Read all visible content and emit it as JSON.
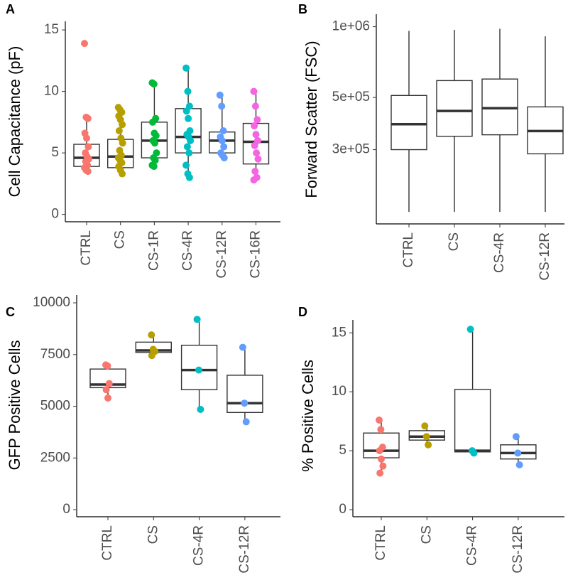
{
  "chart_data": [
    {
      "type": "box",
      "panel_label": "A",
      "ylabel": "Cell Capacitance (pF)",
      "categories": [
        "CTRL",
        "CS",
        "CS-1R",
        "CS-4R",
        "CS-12R",
        "CS-16R"
      ],
      "colors": [
        "#F8766D",
        "#B79F00",
        "#00BA38",
        "#00BFC4",
        "#619CFF",
        "#F564E3"
      ],
      "ylim": [
        -0.6,
        15.7
      ],
      "yticks": [
        0,
        5,
        10,
        15
      ],
      "boxes": [
        {
          "whisker_low": 3.5,
          "q1": 3.9,
          "median": 4.6,
          "q3": 5.7,
          "whisker_high": 7.9,
          "points": [
            13.9,
            7.9,
            7.8,
            6.6,
            6.2,
            5.5,
            5.0,
            4.7,
            4.5,
            4.3,
            4.0,
            3.8,
            3.6,
            3.5
          ]
        },
        {
          "whisker_low": 3.2,
          "q1": 3.8,
          "median": 4.7,
          "q3": 6.1,
          "whisker_high": 8.7,
          "points": [
            8.7,
            8.5,
            8.3,
            8.0,
            7.7,
            7.3,
            6.8,
            6.2,
            5.8,
            5.2,
            4.8,
            4.6,
            4.4,
            4.2,
            3.9,
            3.6,
            3.3
          ]
        },
        {
          "whisker_low": 3.9,
          "q1": 4.6,
          "median": 6.0,
          "q3": 7.5,
          "whisker_high": 10.7,
          "points": [
            10.7,
            10.6,
            7.8,
            7.5,
            6.6,
            6.4,
            6.0,
            5.8,
            5.0,
            4.6,
            4.4,
            4.0,
            3.9
          ]
        },
        {
          "whisker_low": 3.0,
          "q1": 5.0,
          "median": 6.3,
          "q3": 8.6,
          "whisker_high": 11.9,
          "points": [
            11.9,
            10.0,
            8.8,
            8.4,
            7.8,
            6.8,
            6.5,
            6.3,
            6.0,
            5.5,
            5.0,
            4.0,
            3.3,
            3.0
          ]
        },
        {
          "whisker_low": 4.6,
          "q1": 5.0,
          "median": 6.0,
          "q3": 6.7,
          "whisker_high": 9.7,
          "points": [
            9.7,
            8.8,
            6.8,
            6.3,
            6.0,
            5.5,
            5.0,
            4.8,
            4.6
          ]
        },
        {
          "whisker_low": 2.8,
          "q1": 4.1,
          "median": 5.9,
          "q3": 7.4,
          "whisker_high": 10.0,
          "points": [
            10.0,
            8.8,
            7.7,
            7.2,
            6.5,
            6.0,
            5.6,
            5.0,
            4.5,
            3.5,
            3.0,
            2.8
          ]
        }
      ]
    },
    {
      "type": "box",
      "panel_label": "B",
      "ylabel": "Forward Scatter (FSC)",
      "categories": [
        "CTRL",
        "CS",
        "CS-4R",
        "CS-12R"
      ],
      "log_y": true,
      "ylim": [
        145000,
        1130000
      ],
      "yticks": [
        {
          "value": 300000,
          "label": "3e+05"
        },
        {
          "value": 500000,
          "label": "5e+05"
        },
        {
          "value": 1000000,
          "label": "1e+06"
        }
      ],
      "boxes": [
        {
          "whisker_low": 163000,
          "q1": 300000,
          "median": 385000,
          "q3": 510000,
          "whisker_high": 960000
        },
        {
          "whisker_low": 163000,
          "q1": 342000,
          "median": 438000,
          "q3": 590000,
          "whisker_high": 970000
        },
        {
          "whisker_low": 163000,
          "q1": 347000,
          "median": 450000,
          "q3": 599000,
          "whisker_high": 980000
        },
        {
          "whisker_low": 163000,
          "q1": 288000,
          "median": 360000,
          "q3": 456000,
          "whisker_high": 910000
        }
      ]
    },
    {
      "type": "box",
      "panel_label": "C",
      "ylabel": "GFP Positive Cells",
      "categories": [
        "CTRL",
        "CS",
        "CS-4R",
        "CS-12R"
      ],
      "colors": [
        "#F8766D",
        "#B79F00",
        "#00BFC4",
        "#619CFF"
      ],
      "ylim": [
        -340,
        10380
      ],
      "yticks": [
        0,
        2500,
        5000,
        7500,
        10000
      ],
      "boxes": [
        {
          "whisker_low": 5400,
          "q1": 5900,
          "median": 6050,
          "q3": 6800,
          "whisker_high": 7000,
          "points": [
            7000,
            6950,
            6100,
            5800,
            5400
          ]
        },
        {
          "whisker_low": 7450,
          "q1": 7600,
          "median": 7700,
          "q3": 8100,
          "whisker_high": 8450,
          "points": [
            8450,
            7750,
            7650,
            7450
          ]
        },
        {
          "whisker_low": 4850,
          "q1": 5800,
          "median": 6750,
          "q3": 7950,
          "whisker_high": 9200,
          "points": [
            9200,
            6750,
            4850
          ]
        },
        {
          "whisker_low": 4250,
          "q1": 4700,
          "median": 5150,
          "q3": 6500,
          "whisker_high": 7850,
          "points": [
            7850,
            5150,
            4250
          ]
        }
      ]
    },
    {
      "type": "box",
      "panel_label": "D",
      "ylabel": "% Positive Cells",
      "categories": [
        "CTRL",
        "CS",
        "CS-4R",
        "CS-12R"
      ],
      "colors": [
        "#F8766D",
        "#B79F00",
        "#00BFC4",
        "#619CFF"
      ],
      "ylim": [
        -0.6,
        16.1
      ],
      "yticks": [
        0,
        5,
        10,
        15
      ],
      "boxes": [
        {
          "whisker_low": 3.1,
          "q1": 4.4,
          "median": 5.0,
          "q3": 6.5,
          "whisker_high": 7.6,
          "points": [
            7.6,
            6.8,
            5.3,
            5.0,
            4.3,
            3.7,
            3.1
          ]
        },
        {
          "whisker_low": 5.5,
          "q1": 5.9,
          "median": 6.2,
          "q3": 6.7,
          "whisker_high": 7.1,
          "points": [
            7.1,
            6.2,
            5.5
          ]
        },
        {
          "whisker_low": 4.8,
          "q1": 4.9,
          "median": 5.0,
          "q3": 10.2,
          "whisker_high": 15.3,
          "points": [
            15.3,
            5.0,
            4.8
          ]
        },
        {
          "whisker_low": 3.8,
          "q1": 4.3,
          "median": 4.8,
          "q3": 5.5,
          "whisker_high": 6.2,
          "points": [
            6.2,
            4.8,
            3.8
          ]
        }
      ]
    }
  ]
}
